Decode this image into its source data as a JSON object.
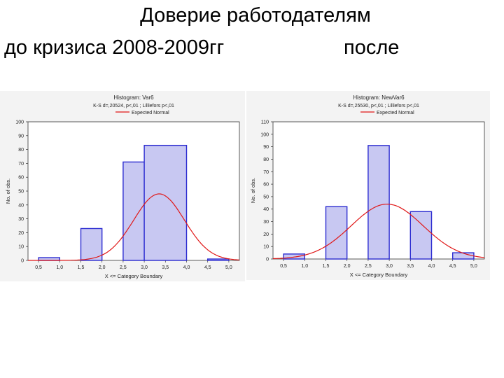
{
  "header": {
    "title": "Доверие работодателям",
    "left_label": "до кризиса 2008-2009гг",
    "right_label": "после"
  },
  "legend_expected": "Expected Normal",
  "chart_data": [
    {
      "type": "bar",
      "title": "Histogram: Var6",
      "subtitle": "K-S d=,20524, p<,01 ; Lilliefors p<,01",
      "xlabel": "X <= Category Boundary",
      "ylabel": "No. of obs.",
      "x_ticks": [
        "0,5",
        "1,0",
        "1,5",
        "2,0",
        "2,5",
        "3,0",
        "3,5",
        "4,0",
        "4,5",
        "5,0"
      ],
      "bins": [
        [
          0.5,
          1.0
        ],
        [
          1.5,
          2.0
        ],
        [
          2.5,
          3.0
        ],
        [
          3.0,
          4.0
        ],
        [
          4.5,
          5.0
        ]
      ],
      "values": [
        2,
        23,
        71,
        83,
        1
      ],
      "ylim": [
        0,
        100
      ],
      "y_ticks": [
        0,
        10,
        20,
        30,
        40,
        50,
        60,
        70,
        80,
        90,
        100
      ],
      "expected_normal": {
        "mean": 3.35,
        "peak": 48,
        "sd": 0.6
      },
      "colors": {
        "bar_fill": "#c8c8f2",
        "bar_stroke": "#2b2bd0",
        "curve": "#e01818"
      }
    },
    {
      "type": "bar",
      "title": "Histogram: NewVar6",
      "subtitle": "K-S d=,25530, p<,01 ; Lilliefors p<,01",
      "xlabel": "X <= Category Boundary",
      "ylabel": "No. of obs.",
      "x_ticks": [
        "0,5",
        "1,0",
        "1,5",
        "2,0",
        "2,5",
        "3,0",
        "3,5",
        "4,0",
        "4,5",
        "5,0"
      ],
      "bins": [
        [
          0.5,
          1.0
        ],
        [
          1.5,
          2.0
        ],
        [
          2.5,
          3.0
        ],
        [
          3.5,
          4.0
        ],
        [
          4.5,
          5.0
        ]
      ],
      "values": [
        4,
        42,
        91,
        38,
        5
      ],
      "ylim": [
        0,
        110
      ],
      "y_ticks": [
        0,
        10,
        20,
        30,
        40,
        50,
        60,
        70,
        80,
        90,
        100,
        110
      ],
      "expected_normal": {
        "mean": 2.95,
        "peak": 44,
        "sd": 0.85
      },
      "colors": {
        "bar_fill": "#c8c8f2",
        "bar_stroke": "#2b2bd0",
        "curve": "#e01818"
      }
    }
  ]
}
